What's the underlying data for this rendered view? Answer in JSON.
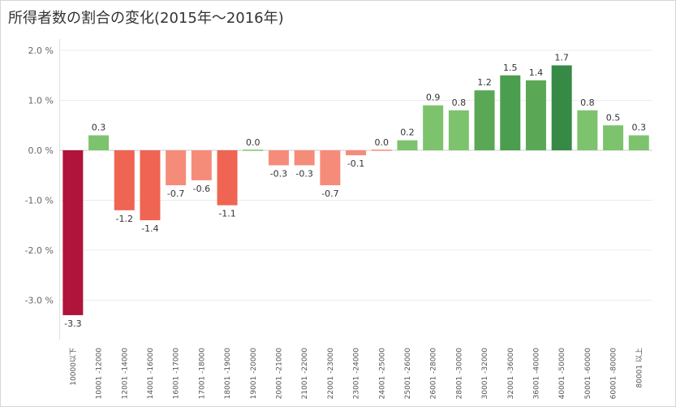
{
  "page": {
    "title": "所得者数の割合の変化(2015年〜2016年)"
  },
  "chart_data": {
    "type": "bar",
    "title": "所得者数の割合の変化(2015年〜2016年)",
    "xlabel": "",
    "ylabel": "",
    "categories": [
      "10000以下",
      "10001 -12000",
      "12001 -14000",
      "14001 -16000",
      "16001 -17000",
      "17001 -18000",
      "18001 -19000",
      "19001 -20000",
      "20001 -21000",
      "21001 -22000",
      "22001 -23000",
      "23001 -24000",
      "24001 -25000",
      "25001 -26000",
      "26001 -28000",
      "28001 -30000",
      "30001 -32000",
      "32001 -36000",
      "36001 -40000",
      "40001 -50000",
      "50001 -60000",
      "60001 -80000",
      "80001 以上"
    ],
    "values": [
      -3.3,
      0.3,
      -1.2,
      -1.4,
      -0.7,
      -0.6,
      -1.1,
      0.0,
      -0.3,
      -0.3,
      -0.7,
      -0.1,
      0.0,
      0.2,
      0.9,
      0.8,
      1.2,
      1.5,
      1.4,
      1.7,
      0.8,
      0.5,
      0.3
    ],
    "labels": [
      "-3.3",
      "0.3",
      "-1.2",
      "-1.4",
      "-0.7",
      "-0.6",
      "-1.1",
      "0.0",
      "-0.3",
      "-0.3",
      "-0.7",
      "-0.1",
      "0.0",
      "0.2",
      "0.9",
      "0.8",
      "1.2",
      "1.5",
      "1.4",
      "1.7",
      "0.8",
      "0.5",
      "0.3"
    ],
    "colors": [
      "#b0143a",
      "#7dc36e",
      "#ef6452",
      "#ef6452",
      "#f58c7a",
      "#f58c7a",
      "#ef6452",
      "#7dc36e",
      "#f58c7a",
      "#f58c7a",
      "#f58c7a",
      "#f58c7a",
      "#f58c7a",
      "#7dc36e",
      "#7dc36e",
      "#7dc36e",
      "#5aa855",
      "#4b9e4e",
      "#5aa855",
      "#368a46",
      "#7dc36e",
      "#7dc36e",
      "#7dc36e"
    ],
    "yticks": [
      2.0,
      1.0,
      0.0,
      -1.0,
      -2.0,
      -3.0
    ],
    "ytick_labels": [
      "2.0 %",
      "1.0 %",
      "0.0 %",
      "-1.0 %",
      "-2.0 %",
      "-3.0 %"
    ],
    "ylim": [
      -3.5,
      2.0
    ],
    "grid": true,
    "legend": "none"
  }
}
